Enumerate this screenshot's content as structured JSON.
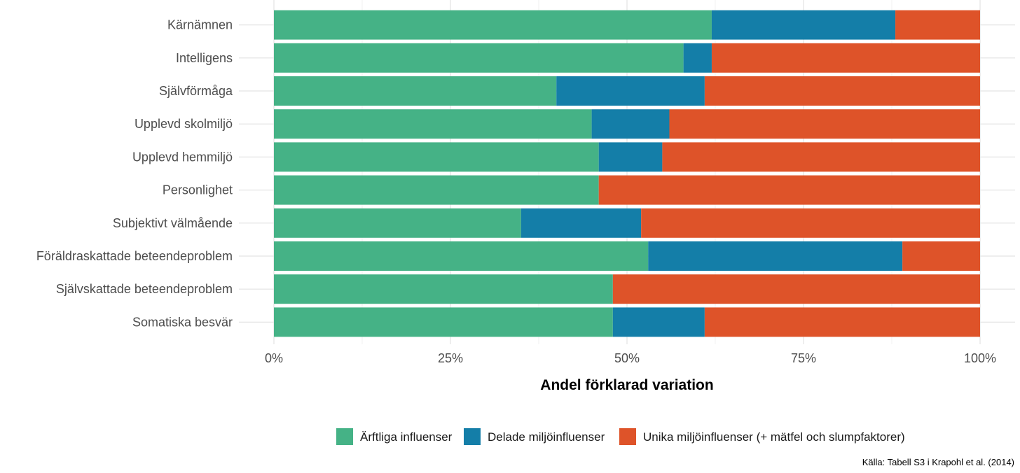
{
  "chart_data": {
    "type": "bar",
    "orientation": "horizontal",
    "stacked": true,
    "categories": [
      "Kärnämnen",
      "Intelligens",
      "Självförmåga",
      "Upplevd skolmiljö",
      "Upplevd hemmiljö",
      "Personlighet",
      "Subjektivt välmående",
      "Föräldraskattade beteendeproblem",
      "Självskattade beteendeproblem",
      "Somatiska besvär"
    ],
    "series": [
      {
        "name": "Ärftliga influenser",
        "color": "#45B286",
        "values": [
          0.62,
          0.58,
          0.4,
          0.45,
          0.46,
          0.46,
          0.35,
          0.53,
          0.48,
          0.48
        ]
      },
      {
        "name": "Delade miljöinfluenser",
        "color": "#147EA8",
        "values": [
          0.26,
          0.04,
          0.21,
          0.11,
          0.09,
          0.0,
          0.17,
          0.36,
          0.0,
          0.13
        ]
      },
      {
        "name": "Unika miljöinfluenser (+ mätfel och slumpfaktorer)",
        "color": "#DE5329",
        "values": [
          0.12,
          0.38,
          0.39,
          0.44,
          0.45,
          0.54,
          0.48,
          0.11,
          0.52,
          0.39
        ]
      }
    ],
    "xticks": [
      "0%",
      "25%",
      "50%",
      "75%",
      "100%"
    ],
    "xlim": [
      0,
      1
    ],
    "xlabel": "Andel förklarad variation",
    "ylabel": "",
    "title": "",
    "grid": true,
    "legend_position": "bottom",
    "caption": "Källa: Tabell S3 i Krapohl et al. (2014)"
  }
}
